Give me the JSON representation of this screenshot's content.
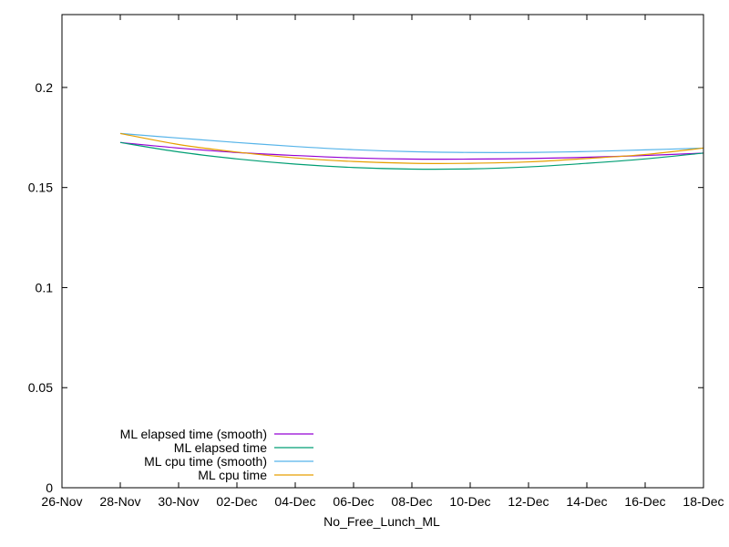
{
  "chart_data": {
    "type": "line",
    "title": "",
    "xlabel": "No_Free_Lunch_ML",
    "ylabel": "",
    "x_ticks": [
      "26-Nov",
      "28-Nov",
      "30-Nov",
      "02-Dec",
      "04-Dec",
      "06-Dec",
      "08-Dec",
      "10-Dec",
      "12-Dec",
      "14-Dec",
      "16-Dec",
      "18-Dec"
    ],
    "y_ticks": [
      "0",
      "0.05",
      "0.1",
      "0.15",
      "0.2"
    ],
    "xlim": [
      "2017-11-26",
      "2017-12-18"
    ],
    "ylim": [
      0,
      0.2364
    ],
    "grid": false,
    "legend_position": "bottom-left",
    "series": [
      {
        "name": "ML elapsed time (smooth)",
        "color": "#9400d3",
        "x": [
          "2017-11-28",
          "2017-11-30",
          "2017-12-02",
          "2017-12-04",
          "2017-12-06",
          "2017-12-08",
          "2017-12-10",
          "2017-12-12",
          "2017-12-14",
          "2017-12-16",
          "2017-12-18"
        ],
        "y": [
          0.1725,
          0.1697,
          0.1675,
          0.166,
          0.1648,
          0.1642,
          0.1642,
          0.1645,
          0.1651,
          0.166,
          0.1672
        ]
      },
      {
        "name": "ML elapsed time",
        "color": "#009e73",
        "x": [
          "2017-11-28",
          "2017-11-30",
          "2017-12-02",
          "2017-12-04",
          "2017-12-06",
          "2017-12-08",
          "2017-12-10",
          "2017-12-12",
          "2017-12-14",
          "2017-12-16",
          "2017-12-18"
        ],
        "y": [
          0.1725,
          0.1678,
          0.1643,
          0.1617,
          0.16,
          0.1592,
          0.1593,
          0.1603,
          0.1621,
          0.1643,
          0.1672
        ]
      },
      {
        "name": "ML cpu time (smooth)",
        "color": "#56b4e9",
        "x": [
          "2017-11-28",
          "2017-11-30",
          "2017-12-02",
          "2017-12-04",
          "2017-12-06",
          "2017-12-08",
          "2017-12-10",
          "2017-12-12",
          "2017-12-14",
          "2017-12-16",
          "2017-12-18"
        ],
        "y": [
          0.177,
          0.1747,
          0.1725,
          0.1705,
          0.1689,
          0.1679,
          0.1675,
          0.1675,
          0.168,
          0.1688,
          0.1697
        ]
      },
      {
        "name": "ML cpu time",
        "color": "#e69f00",
        "x": [
          "2017-11-28",
          "2017-11-30",
          "2017-12-02",
          "2017-12-04",
          "2017-12-06",
          "2017-12-08",
          "2017-12-10",
          "2017-12-12",
          "2017-12-14",
          "2017-12-16",
          "2017-12-18"
        ],
        "y": [
          0.177,
          0.1715,
          0.1677,
          0.1648,
          0.163,
          0.1621,
          0.1621,
          0.1628,
          0.1645,
          0.1665,
          0.1697
        ]
      }
    ]
  }
}
